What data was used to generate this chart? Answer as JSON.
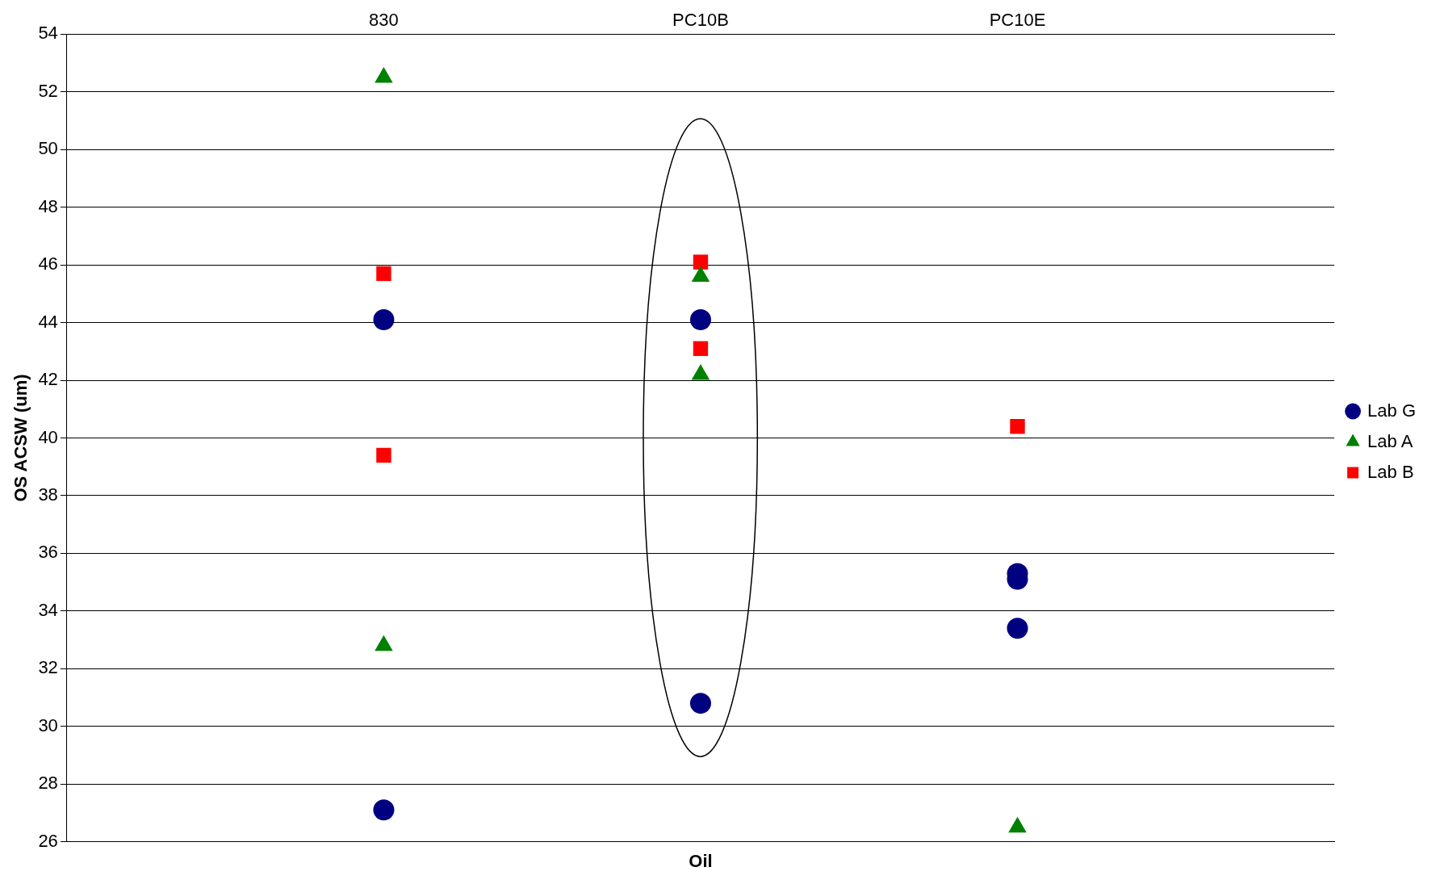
{
  "chart_data": {
    "type": "scatter",
    "xlabel": "Oil",
    "ylabel": "OS ACSW (um)",
    "categories": [
      "830",
      "PC10B",
      "PC10E"
    ],
    "series": [
      {
        "name": "Lab G",
        "color": "#000080",
        "marker": "circle",
        "x": [
          "830",
          "830",
          "PC10B",
          "PC10B",
          "PC10E",
          "PC10E",
          "PC10E"
        ],
        "values": [
          44.1,
          27.1,
          44.1,
          30.8,
          35.3,
          35.1,
          33.4
        ]
      },
      {
        "name": "Lab A",
        "color": "#008000",
        "marker": "triangle",
        "x": [
          "830",
          "830",
          "PC10B",
          "PC10B",
          "PC10E"
        ],
        "values": [
          52.5,
          32.8,
          45.6,
          42.2,
          26.5
        ]
      },
      {
        "name": "Lab B",
        "color": "#ff0000",
        "marker": "square",
        "x": [
          "830",
          "830",
          "PC10B",
          "PC10B",
          "PC10E"
        ],
        "values": [
          45.7,
          39.4,
          46.1,
          43.1,
          40.4
        ]
      }
    ],
    "ylim": [
      26,
      54
    ],
    "yticks": [
      26,
      28,
      30,
      32,
      34,
      36,
      38,
      40,
      42,
      44,
      46,
      48,
      50,
      52,
      54
    ],
    "grid": "y",
    "legend": "right"
  }
}
